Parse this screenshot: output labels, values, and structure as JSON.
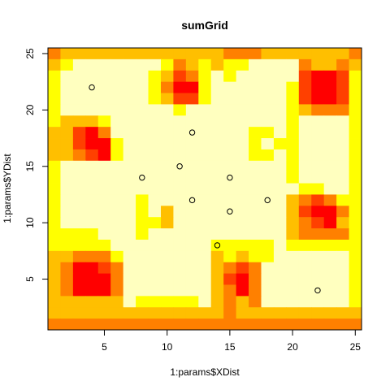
{
  "chart_data": {
    "type": "heatmap",
    "title": "sumGrid",
    "xlabel": "1:params$XDist",
    "ylabel": "1:params$YDist",
    "xlim": [
      0.5,
      25.5
    ],
    "ylim": [
      0.5,
      25.5
    ],
    "xticks": [
      "5",
      "10",
      "15",
      "20",
      "25"
    ],
    "yticks": [
      "5",
      "10",
      "15",
      "20",
      "25"
    ],
    "palette": [
      "#FF0000",
      "#FF4000",
      "#FF8000",
      "#FFBF00",
      "#FFFF00",
      "#FFFFBF"
    ],
    "palette_name": "heat.colors",
    "grid_rows_top_to_bottom": [
      "2333333333333322233333332",
      "3455555554234344555523323",
      "4555555543124545555510014",
      "4555555542004555555410014",
      "4555555543114555555410014",
      "4555555555455555555432224",
      "4333455555555555555455554",
      "3310255555555555445455554",
      "3310045555555555454455554",
      "3321045555555555445455554",
      "4555555555555555555455554",
      "4555555555555555555455554",
      "4555555555555555555544554",
      "4555555455555555555321244",
      "4555555453555555555310024",
      "4555555443555555555321034",
      "4444555455555555555322224",
      "4444455555555444445444444",
      "3322245555555343445555554",
      "3200125555555321255555554",
      "3200025555555310255555554",
      "3200025555555320255555554",
      "3333335444445323255555554",
      "3333333333333323333333333",
      "2222222222222222222222222"
    ],
    "points": [
      {
        "x": 4,
        "y": 22
      },
      {
        "x": 12,
        "y": 18
      },
      {
        "x": 11,
        "y": 15
      },
      {
        "x": 8,
        "y": 14
      },
      {
        "x": 15,
        "y": 14
      },
      {
        "x": 12,
        "y": 12
      },
      {
        "x": 18,
        "y": 12
      },
      {
        "x": 15,
        "y": 11
      },
      {
        "x": 14,
        "y": 8
      },
      {
        "x": 22,
        "y": 4
      }
    ]
  }
}
